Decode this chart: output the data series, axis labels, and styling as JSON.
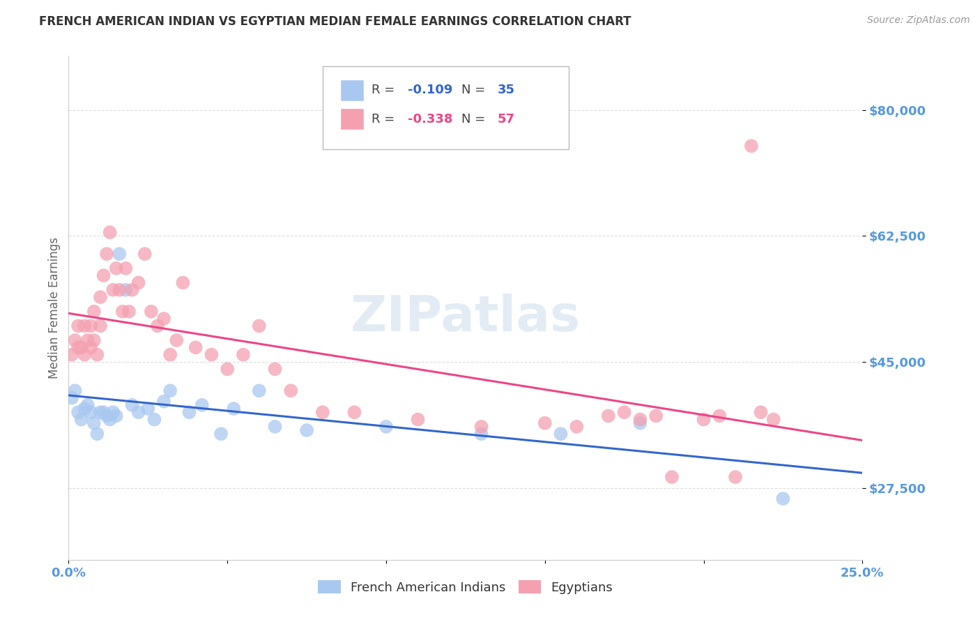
{
  "title": "FRENCH AMERICAN INDIAN VS EGYPTIAN MEDIAN FEMALE EARNINGS CORRELATION CHART",
  "source": "Source: ZipAtlas.com",
  "ylabel": "Median Female Earnings",
  "xlim": [
    0.0,
    0.25
  ],
  "ylim": [
    17500,
    87500
  ],
  "yticks": [
    27500,
    45000,
    62500,
    80000
  ],
  "ytick_labels": [
    "$27,500",
    "$45,000",
    "$62,500",
    "$80,000"
  ],
  "xticks": [
    0.0,
    0.05,
    0.1,
    0.15,
    0.2,
    0.25
  ],
  "xtick_labels": [
    "0.0%",
    "",
    "",
    "",
    "",
    "25.0%"
  ],
  "blue_R": -0.109,
  "blue_N": 35,
  "pink_R": -0.338,
  "pink_N": 57,
  "blue_color": "#a8c8f0",
  "pink_color": "#f4a0b0",
  "blue_line_color": "#3366cc",
  "pink_line_color": "#ee4488",
  "legend_label_blue": "French American Indians",
  "legend_label_pink": "Egyptians",
  "watermark": "ZIPatlas",
  "title_color": "#333333",
  "axis_label_color": "#666666",
  "ytick_color": "#5599dd",
  "xtick_color": "#5599dd",
  "grid_color": "#dddddd",
  "background_color": "#FFFFFF",
  "blue_scatter_x": [
    0.001,
    0.002,
    0.003,
    0.004,
    0.005,
    0.006,
    0.007,
    0.008,
    0.009,
    0.01,
    0.011,
    0.012,
    0.013,
    0.014,
    0.015,
    0.016,
    0.018,
    0.02,
    0.022,
    0.025,
    0.027,
    0.03,
    0.032,
    0.038,
    0.042,
    0.048,
    0.052,
    0.06,
    0.065,
    0.075,
    0.1,
    0.13,
    0.155,
    0.18,
    0.225
  ],
  "blue_scatter_y": [
    40000,
    41000,
    38000,
    37000,
    38500,
    39000,
    38000,
    36500,
    35000,
    38000,
    38000,
    37500,
    37000,
    38000,
    37500,
    60000,
    55000,
    39000,
    38000,
    38500,
    37000,
    39500,
    41000,
    38000,
    39000,
    35000,
    38500,
    41000,
    36000,
    35500,
    36000,
    35000,
    35000,
    36500,
    26000
  ],
  "pink_scatter_x": [
    0.001,
    0.002,
    0.003,
    0.003,
    0.004,
    0.005,
    0.005,
    0.006,
    0.007,
    0.007,
    0.008,
    0.008,
    0.009,
    0.01,
    0.01,
    0.011,
    0.012,
    0.013,
    0.014,
    0.015,
    0.016,
    0.017,
    0.018,
    0.019,
    0.02,
    0.022,
    0.024,
    0.026,
    0.028,
    0.03,
    0.032,
    0.034,
    0.036,
    0.04,
    0.045,
    0.05,
    0.055,
    0.06,
    0.065,
    0.07,
    0.08,
    0.09,
    0.11,
    0.13,
    0.15,
    0.16,
    0.17,
    0.175,
    0.18,
    0.185,
    0.19,
    0.2,
    0.205,
    0.21,
    0.215,
    0.218,
    0.222
  ],
  "pink_scatter_y": [
    46000,
    48000,
    47000,
    50000,
    47000,
    46000,
    50000,
    48000,
    47000,
    50000,
    48000,
    52000,
    46000,
    50000,
    54000,
    57000,
    60000,
    63000,
    55000,
    58000,
    55000,
    52000,
    58000,
    52000,
    55000,
    56000,
    60000,
    52000,
    50000,
    51000,
    46000,
    48000,
    56000,
    47000,
    46000,
    44000,
    46000,
    50000,
    44000,
    41000,
    38000,
    38000,
    37000,
    36000,
    36500,
    36000,
    37500,
    38000,
    37000,
    37500,
    29000,
    37000,
    37500,
    29000,
    75000,
    38000,
    37000
  ]
}
